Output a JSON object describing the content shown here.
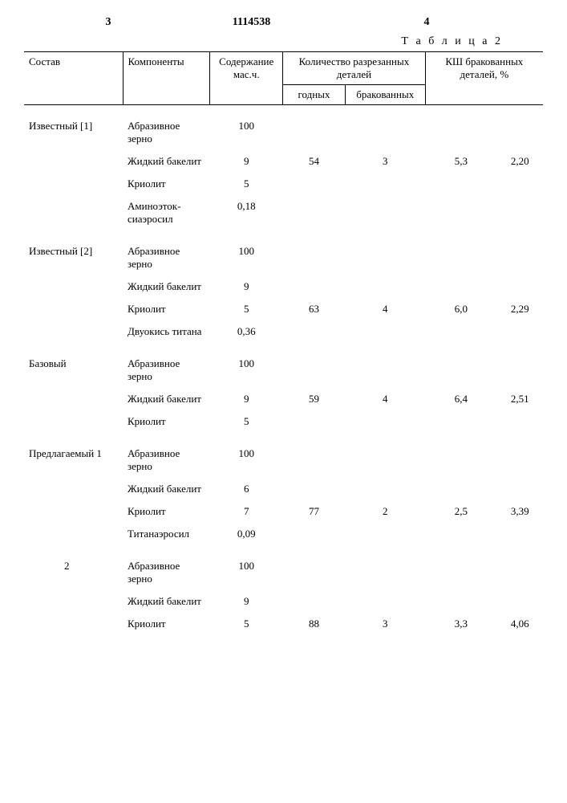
{
  "doc_number": "1114538",
  "page_left": "3",
  "page_right": "4",
  "table_caption": "Т а б л и ц а  2",
  "headers": {
    "sostav": "Состав",
    "components": "Компоненты",
    "soderzh": "Содержание мас.ч.",
    "kolvo": "Количество разрезанных деталей",
    "godnyh": "годных",
    "brakovan": "бракованных",
    "ksh": "КШ бракован­ных деталей, %"
  },
  "groups": [
    {
      "label": "Извест­ный [1]",
      "rows": [
        {
          "comp": "Абразивное зерно",
          "val": "100",
          "god": "",
          "brak": "",
          "ksh": "",
          "ksh2": ""
        },
        {
          "comp": "Жидкий ба­келит",
          "val": "9",
          "god": "54",
          "brak": "3",
          "ksh": "5,3",
          "ksh2": "2,20"
        },
        {
          "comp": "Криолит",
          "val": "5",
          "god": "",
          "brak": "",
          "ksh": "",
          "ksh2": ""
        },
        {
          "comp": "Аминоэток­сиаэросил",
          "val": "0,18",
          "god": "",
          "brak": "",
          "ksh": "",
          "ksh2": ""
        }
      ]
    },
    {
      "label": "Извест­ный [2]",
      "rows": [
        {
          "comp": "Абразивное зерно",
          "val": "100",
          "god": "",
          "brak": "",
          "ksh": "",
          "ksh2": ""
        },
        {
          "comp": "Жидкий ба­келит",
          "val": "9",
          "god": "",
          "brak": "",
          "ksh": "",
          "ksh2": ""
        },
        {
          "comp": "Криолит",
          "val": "5",
          "god": "63",
          "brak": "4",
          "ksh": "6,0",
          "ksh2": "2,29"
        },
        {
          "comp": "Двуокись титана",
          "val": "0,36",
          "god": "",
          "brak": "",
          "ksh": "",
          "ksh2": ""
        }
      ]
    },
    {
      "label": "Базовый",
      "rows": [
        {
          "comp": "Абразивное зерно",
          "val": "100",
          "god": "",
          "brak": "",
          "ksh": "",
          "ksh2": ""
        },
        {
          "comp": "Жидкий ба­келит",
          "val": "9",
          "god": "59",
          "brak": "4",
          "ksh": "6,4",
          "ksh2": "2,51"
        },
        {
          "comp": "Криолит",
          "val": "5",
          "god": "",
          "brak": "",
          "ksh": "",
          "ksh2": ""
        }
      ]
    },
    {
      "label": "Предла­гаемый 1",
      "rows": [
        {
          "comp": "Абразивное зерно",
          "val": "100",
          "god": "",
          "brak": "",
          "ksh": "",
          "ksh2": ""
        },
        {
          "comp": "Жидкий бакелит",
          "val": "6",
          "god": "",
          "brak": "",
          "ksh": "",
          "ksh2": ""
        },
        {
          "comp": "Криолит",
          "val": "7",
          "god": "77",
          "brak": "2",
          "ksh": "2,5",
          "ksh2": "3,39"
        },
        {
          "comp": "Титанаэросил",
          "val": "0,09",
          "god": "",
          "brak": "",
          "ksh": "",
          "ksh2": ""
        }
      ]
    },
    {
      "label": "2",
      "label_indent": true,
      "rows": [
        {
          "comp": "Абразивное зерно",
          "val": "100",
          "god": "",
          "brak": "",
          "ksh": "",
          "ksh2": ""
        },
        {
          "comp": "Жидкий бакелит",
          "val": "9",
          "god": "",
          "brak": "",
          "ksh": "",
          "ksh2": ""
        },
        {
          "comp": "Криолит",
          "val": "5",
          "god": "88",
          "brak": "3",
          "ksh": "3,3",
          "ksh2": "4,06"
        }
      ]
    }
  ]
}
